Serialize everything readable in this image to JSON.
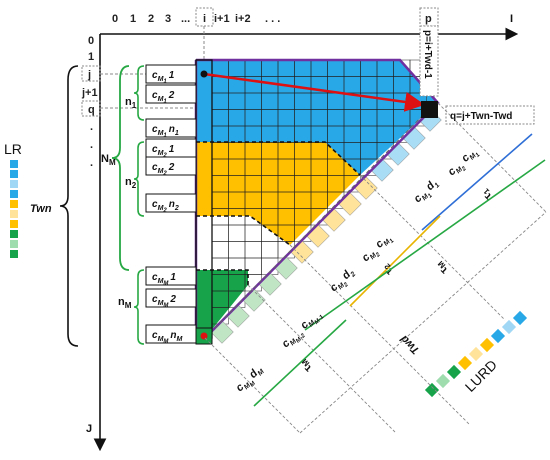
{
  "axes": {
    "x_axis_label": "I",
    "y_axis_label": "J",
    "x_ticks": [
      "0",
      "1",
      "2",
      "3",
      "...",
      "i",
      "i+1",
      "i+2",
      ". . .",
      "p"
    ],
    "y_ticks": [
      "0",
      "1",
      "j",
      "j+1",
      "q",
      ".",
      ".",
      "."
    ]
  },
  "annotations": {
    "p_formula": "p=i+Twd-1",
    "q_formula": "q=j+Twn-Twd",
    "twn": "Twn",
    "lr": "LR",
    "lurd": "LURD",
    "nm_brace": "N",
    "nm_brace_sub": "M"
  },
  "groups": {
    "n1": {
      "label": "n",
      "sub": "1"
    },
    "n2": {
      "label": "n",
      "sub": "2"
    },
    "nM": {
      "label": "n",
      "sub": "M"
    }
  },
  "rows": [
    {
      "c": "c",
      "sub": "M",
      "subsub": "1",
      "idx": "1"
    },
    {
      "c": "c",
      "sub": "M",
      "subsub": "1",
      "idx": "2"
    },
    {
      "c": "c",
      "sub": "M",
      "subsub": "1",
      "idx": "n",
      "idxsub": "1"
    },
    {
      "c": "c",
      "sub": "M",
      "subsub": "2",
      "idx": "1"
    },
    {
      "c": "c",
      "sub": "M",
      "subsub": "2",
      "idx": "2"
    },
    {
      "c": "c",
      "sub": "M",
      "subsub": "2",
      "idx": "n",
      "idxsub": "2"
    },
    {
      "c": "c",
      "sub": "M",
      "subsub": "M",
      "idx": "1"
    },
    {
      "c": "c",
      "sub": "M",
      "subsub": "M",
      "idx": "2"
    },
    {
      "c": "c",
      "sub": "M",
      "subsub": "M",
      "idx": "n",
      "idxsub": "M"
    }
  ],
  "diag_labels": {
    "g1": [
      "c",
      "M",
      "1",
      "d",
      "1"
    ],
    "g1b": [
      "c",
      "M",
      "2",
      "c",
      "M",
      "1"
    ],
    "g2": [
      "c",
      "M",
      "2",
      "d",
      "2"
    ],
    "g2b": [
      "c",
      "M",
      "2",
      "c",
      "M",
      "1"
    ],
    "gm": [
      "c",
      "M",
      "M",
      "d",
      "M"
    ],
    "gmb": [
      "c",
      "M",
      "M-2",
      "c",
      "M",
      "M-1"
    ]
  },
  "tau": {
    "t1": "τ",
    "t1sub": "1",
    "t2": "τ",
    "t2sub": "2",
    "tm": "τ",
    "tmsub": "M",
    "tM": "τ",
    "tMsub": "M",
    "Twd": "Twd"
  },
  "colors": {
    "blue": "#29a8e8",
    "orange": "#ffc000",
    "green": "#16a34a",
    "purple": "#7030a0",
    "red": "#d11",
    "brace_green": "#27a844",
    "tau_blue": "#2f6fd6",
    "tau_yellow": "#e8b400"
  }
}
